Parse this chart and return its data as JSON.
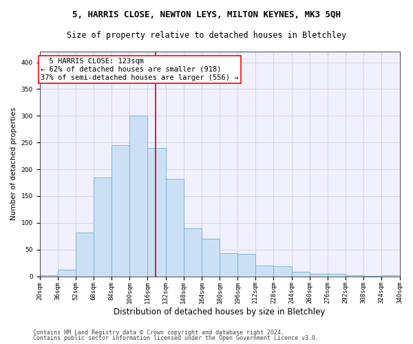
{
  "title1": "5, HARRIS CLOSE, NEWTON LEYS, MILTON KEYNES, MK3 5QH",
  "title2": "Size of property relative to detached houses in Bletchley",
  "xlabel": "Distribution of detached houses by size in Bletchley",
  "ylabel": "Number of detached properties",
  "footer1": "Contains HM Land Registry data © Crown copyright and database right 2024.",
  "footer2": "Contains public sector information licensed under the Open Government Licence v3.0.",
  "annotation_line1": "5 HARRIS CLOSE: 123sqm",
  "annotation_line2": "← 62% of detached houses are smaller (918)",
  "annotation_line3": "37% of semi-detached houses are larger (556) →",
  "property_size": 123,
  "bin_edges": [
    20,
    36,
    52,
    68,
    84,
    100,
    116,
    132,
    148,
    164,
    180,
    196,
    212,
    228,
    244,
    260,
    276,
    292,
    308,
    324,
    340
  ],
  "bar_heights": [
    2,
    12,
    82,
    185,
    245,
    300,
    240,
    182,
    90,
    70,
    43,
    42,
    20,
    19,
    9,
    5,
    5,
    2,
    1,
    2
  ],
  "bar_color": "#cce0f5",
  "bar_edge_color": "#6baed6",
  "vline_color": "#cc0000",
  "vline_x": 123,
  "grid_color": "#d0d0d8",
  "background_color": "#f0f0ff",
  "title1_fontsize": 9,
  "title2_fontsize": 8.5,
  "ylabel_fontsize": 7.5,
  "xlabel_fontsize": 8.5,
  "tick_fontsize": 6.5,
  "annotation_fontsize": 7.5,
  "footer_fontsize": 6,
  "ylim": [
    0,
    420
  ],
  "yticks": [
    0,
    50,
    100,
    150,
    200,
    250,
    300,
    350,
    400
  ]
}
